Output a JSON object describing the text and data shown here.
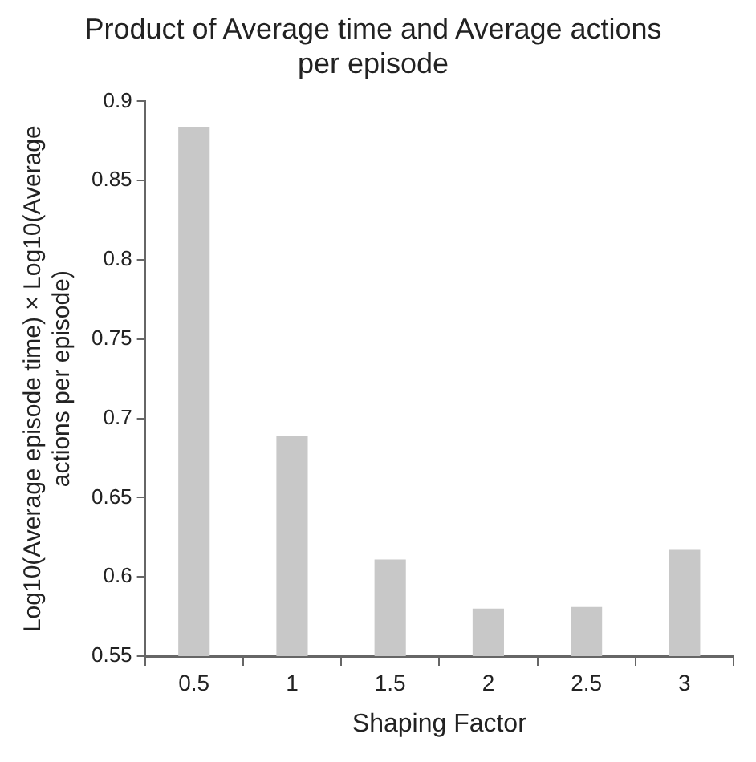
{
  "chart_data": {
    "type": "bar",
    "title": "Product of Average time and Average actions per episode",
    "xlabel": "Shaping Factor",
    "ylabel": "Log10(Average episode time) × Log10(Average actions per episode)",
    "categories": [
      "0.5",
      "1",
      "1.5",
      "2",
      "2.5",
      "3"
    ],
    "values": [
      0.884,
      0.689,
      0.611,
      0.58,
      0.581,
      0.617
    ],
    "color": "#c8c8c8",
    "ylim": [
      0.55,
      0.9
    ],
    "yticks": [
      0.55,
      0.6,
      0.65,
      0.7,
      0.75,
      0.8,
      0.85,
      0.9
    ],
    "grid": false,
    "legend": false
  }
}
